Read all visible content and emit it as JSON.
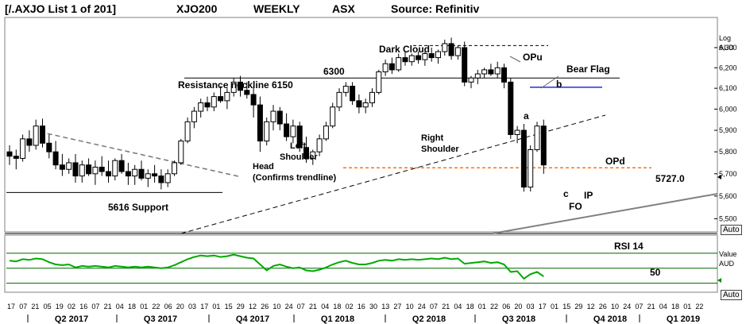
{
  "header": {
    "list_label": "[/.AXJO List 1 of 201]",
    "symbol": "XJO200",
    "period": "WEEKLY",
    "exchange": "ASX",
    "source": "Source: Refinitiv"
  },
  "price_panel": {
    "scale_label_1": "Log",
    "scale_label_2": "AUD",
    "auto_button": "Auto",
    "current_price_marker": "5727.0"
  },
  "rsi_panel": {
    "title": "RSI 14",
    "level_label": "50",
    "scale_label": "Value",
    "scale_unit": "AUD",
    "auto_button": "Auto"
  },
  "annotations": {
    "dark_cloud": "Dark Cloud",
    "opu": "OPu",
    "bear_flag": "Bear Flag",
    "b": "b",
    "a": "a",
    "resistance": "Resistance  neckline 6150",
    "p6300": "6300",
    "left_shoulder_1": "Left",
    "left_shoulder_2": "Shoulder",
    "right_shoulder_1": "Right",
    "right_shoulder_2": "Shoulder",
    "head_1": "Head",
    "head_2": "(Confirms trendline)",
    "support": "5616 Support",
    "opd": "OPd",
    "c": "c",
    "fo": "FO",
    "ip": "IP"
  },
  "chart_data": [
    {
      "type": "candlestick",
      "title": "XJO200",
      "ylabel": "AUD",
      "scale": "log",
      "ylim": [
        5450,
        6420
      ],
      "yticks": [
        5500,
        5600,
        5700,
        5800,
        5900,
        6000,
        6100,
        6200,
        6300
      ],
      "ytick_labels": [
        "5,500",
        "5,600",
        "5,700",
        "5,800",
        "5,900",
        "6,000",
        "6,100",
        "6,200",
        "6,300"
      ],
      "x_day_labels": [
        "17",
        "07",
        "21",
        "05",
        "19",
        "02",
        "16",
        "07",
        "21",
        "04",
        "18",
        "01",
        "22",
        "06",
        "20",
        "03",
        "17",
        "01",
        "15",
        "29",
        "12",
        "26",
        "10",
        "24",
        "07",
        "21",
        "04",
        "18",
        "02",
        "16",
        "30",
        "13",
        "27",
        "10",
        "24",
        "07",
        "21",
        "04",
        "18",
        "01",
        "22",
        "06",
        "20",
        "03",
        "17",
        "01",
        "15",
        "29",
        "12",
        "26",
        "10",
        "24",
        "07",
        "21",
        "04",
        "18",
        "01",
        "22"
      ],
      "x_quarter_labels": [
        "Q2 2017",
        "Q3 2017",
        "Q4 2017",
        "Q1 2018",
        "Q2 2018",
        "Q3 2018",
        "Q4 2018",
        "Q1 2019"
      ],
      "candles": [
        {
          "o": 5800,
          "h": 5830,
          "l": 5740,
          "c": 5780
        },
        {
          "o": 5780,
          "h": 5810,
          "l": 5720,
          "c": 5770
        },
        {
          "o": 5770,
          "h": 5880,
          "l": 5755,
          "c": 5860
        },
        {
          "o": 5860,
          "h": 5900,
          "l": 5800,
          "c": 5830
        },
        {
          "o": 5830,
          "h": 5950,
          "l": 5810,
          "c": 5920
        },
        {
          "o": 5920,
          "h": 5955,
          "l": 5820,
          "c": 5840
        },
        {
          "o": 5840,
          "h": 5880,
          "l": 5770,
          "c": 5800
        },
        {
          "o": 5800,
          "h": 5850,
          "l": 5720,
          "c": 5740
        },
        {
          "o": 5740,
          "h": 5790,
          "l": 5690,
          "c": 5720
        },
        {
          "o": 5720,
          "h": 5770,
          "l": 5700,
          "c": 5750
        },
        {
          "o": 5750,
          "h": 5790,
          "l": 5660,
          "c": 5690
        },
        {
          "o": 5690,
          "h": 5760,
          "l": 5660,
          "c": 5740
        },
        {
          "o": 5740,
          "h": 5770,
          "l": 5690,
          "c": 5700
        },
        {
          "o": 5700,
          "h": 5760,
          "l": 5650,
          "c": 5730
        },
        {
          "o": 5730,
          "h": 5780,
          "l": 5690,
          "c": 5710
        },
        {
          "o": 5710,
          "h": 5760,
          "l": 5660,
          "c": 5690
        },
        {
          "o": 5690,
          "h": 5770,
          "l": 5670,
          "c": 5760
        },
        {
          "o": 5760,
          "h": 5790,
          "l": 5700,
          "c": 5710
        },
        {
          "o": 5710,
          "h": 5750,
          "l": 5650,
          "c": 5690
        },
        {
          "o": 5690,
          "h": 5740,
          "l": 5650,
          "c": 5720
        },
        {
          "o": 5720,
          "h": 5760,
          "l": 5670,
          "c": 5680
        },
        {
          "o": 5680,
          "h": 5720,
          "l": 5640,
          "c": 5700
        },
        {
          "o": 5700,
          "h": 5740,
          "l": 5660,
          "c": 5690
        },
        {
          "o": 5690,
          "h": 5720,
          "l": 5630,
          "c": 5660
        },
        {
          "o": 5660,
          "h": 5720,
          "l": 5640,
          "c": 5700
        },
        {
          "o": 5700,
          "h": 5760,
          "l": 5690,
          "c": 5750
        },
        {
          "o": 5750,
          "h": 5860,
          "l": 5740,
          "c": 5850
        },
        {
          "o": 5850,
          "h": 5960,
          "l": 5840,
          "c": 5940
        },
        {
          "o": 5940,
          "h": 6010,
          "l": 5910,
          "c": 5990
        },
        {
          "o": 5990,
          "h": 6050,
          "l": 5960,
          "c": 6030
        },
        {
          "o": 6030,
          "h": 6060,
          "l": 5990,
          "c": 6010
        },
        {
          "o": 6010,
          "h": 6080,
          "l": 5990,
          "c": 6060
        },
        {
          "o": 6060,
          "h": 6110,
          "l": 6030,
          "c": 6040
        },
        {
          "o": 6040,
          "h": 6100,
          "l": 6000,
          "c": 6080
        },
        {
          "o": 6080,
          "h": 6150,
          "l": 6060,
          "c": 6130
        },
        {
          "o": 6130,
          "h": 6160,
          "l": 6060,
          "c": 6090
        },
        {
          "o": 6090,
          "h": 6130,
          "l": 6050,
          "c": 6070
        },
        {
          "o": 6070,
          "h": 6110,
          "l": 5960,
          "c": 6020
        },
        {
          "o": 6020,
          "h": 6060,
          "l": 5800,
          "c": 5850
        },
        {
          "o": 5850,
          "h": 5960,
          "l": 5830,
          "c": 5940
        },
        {
          "o": 5940,
          "h": 6020,
          "l": 5900,
          "c": 5990
        },
        {
          "o": 5990,
          "h": 6010,
          "l": 5900,
          "c": 5930
        },
        {
          "o": 5930,
          "h": 5980,
          "l": 5850,
          "c": 5870
        },
        {
          "o": 5870,
          "h": 5950,
          "l": 5840,
          "c": 5920
        },
        {
          "o": 5920,
          "h": 5940,
          "l": 5800,
          "c": 5820
        },
        {
          "o": 5820,
          "h": 5870,
          "l": 5750,
          "c": 5770
        },
        {
          "o": 5770,
          "h": 5810,
          "l": 5740,
          "c": 5800
        },
        {
          "o": 5800,
          "h": 5880,
          "l": 5780,
          "c": 5860
        },
        {
          "o": 5860,
          "h": 5940,
          "l": 5850,
          "c": 5920
        },
        {
          "o": 5920,
          "h": 6030,
          "l": 5910,
          "c": 6010
        },
        {
          "o": 6010,
          "h": 6100,
          "l": 5990,
          "c": 6080
        },
        {
          "o": 6080,
          "h": 6130,
          "l": 6060,
          "c": 6110
        },
        {
          "o": 6110,
          "h": 6130,
          "l": 6020,
          "c": 6040
        },
        {
          "o": 6040,
          "h": 6070,
          "l": 5980,
          "c": 6010
        },
        {
          "o": 6010,
          "h": 6050,
          "l": 5980,
          "c": 6030
        },
        {
          "o": 6030,
          "h": 6100,
          "l": 6010,
          "c": 6080
        },
        {
          "o": 6080,
          "h": 6190,
          "l": 6070,
          "c": 6180
        },
        {
          "o": 6180,
          "h": 6240,
          "l": 6160,
          "c": 6220
        },
        {
          "o": 6220,
          "h": 6250,
          "l": 6170,
          "c": 6190
        },
        {
          "o": 6190,
          "h": 6270,
          "l": 6180,
          "c": 6250
        },
        {
          "o": 6250,
          "h": 6280,
          "l": 6210,
          "c": 6230
        },
        {
          "o": 6230,
          "h": 6270,
          "l": 6210,
          "c": 6260
        },
        {
          "o": 6260,
          "h": 6280,
          "l": 6220,
          "c": 6240
        },
        {
          "o": 6240,
          "h": 6280,
          "l": 6210,
          "c": 6270
        },
        {
          "o": 6270,
          "h": 6300,
          "l": 6230,
          "c": 6250
        },
        {
          "o": 6250,
          "h": 6290,
          "l": 6220,
          "c": 6280
        },
        {
          "o": 6280,
          "h": 6340,
          "l": 6260,
          "c": 6320
        },
        {
          "o": 6320,
          "h": 6350,
          "l": 6240,
          "c": 6260
        },
        {
          "o": 6260,
          "h": 6310,
          "l": 6240,
          "c": 6300
        },
        {
          "o": 6300,
          "h": 6330,
          "l": 6110,
          "c": 6130
        },
        {
          "o": 6130,
          "h": 6160,
          "l": 6100,
          "c": 6150
        },
        {
          "o": 6150,
          "h": 6190,
          "l": 6120,
          "c": 6170
        },
        {
          "o": 6170,
          "h": 6200,
          "l": 6150,
          "c": 6190
        },
        {
          "o": 6190,
          "h": 6220,
          "l": 6160,
          "c": 6170
        },
        {
          "o": 6170,
          "h": 6230,
          "l": 6150,
          "c": 6200
        },
        {
          "o": 6200,
          "h": 6220,
          "l": 6100,
          "c": 6130
        },
        {
          "o": 6130,
          "h": 6150,
          "l": 5860,
          "c": 5880
        },
        {
          "o": 5880,
          "h": 5920,
          "l": 5840,
          "c": 5900
        },
        {
          "o": 5900,
          "h": 5930,
          "l": 5620,
          "c": 5640
        },
        {
          "o": 5640,
          "h": 5830,
          "l": 5620,
          "c": 5810
        },
        {
          "o": 5810,
          "h": 5940,
          "l": 5800,
          "c": 5920
        },
        {
          "o": 5920,
          "h": 5950,
          "l": 5700,
          "c": 5740
        }
      ],
      "rsi": {
        "name": "RSI 14",
        "ylim": [
          20,
          90
        ],
        "level": 50,
        "upper": 70,
        "lower": 30,
        "values": [
          60,
          59,
          62,
          61,
          63,
          62,
          58,
          55,
          54,
          55,
          51,
          53,
          52,
          53,
          52,
          51,
          53,
          52,
          51,
          52,
          51,
          52,
          51,
          50,
          51,
          54,
          58,
          62,
          65,
          67,
          66,
          67,
          65,
          66,
          68,
          66,
          64,
          63,
          55,
          47,
          53,
          55,
          52,
          50,
          51,
          47,
          46,
          48,
          51,
          55,
          58,
          60,
          57,
          55,
          55,
          57,
          60,
          61,
          60,
          62,
          61,
          62,
          61,
          62,
          63,
          62,
          64,
          62,
          63,
          56,
          57,
          58,
          59,
          57,
          58,
          55,
          45,
          46,
          36,
          42,
          45,
          39
        ]
      },
      "horizontal_levels": [
        {
          "value": 6150,
          "style": "solid",
          "color": "#000000"
        },
        {
          "value": 5616,
          "style": "solid",
          "color": "#000000"
        },
        {
          "value": 6310,
          "style": "dashed",
          "color": "#000000"
        },
        {
          "value": 6105,
          "style": "solid",
          "color": "#0000cc"
        },
        {
          "value": 5727,
          "style": "dashed",
          "color": "#ff6600"
        }
      ]
    }
  ]
}
